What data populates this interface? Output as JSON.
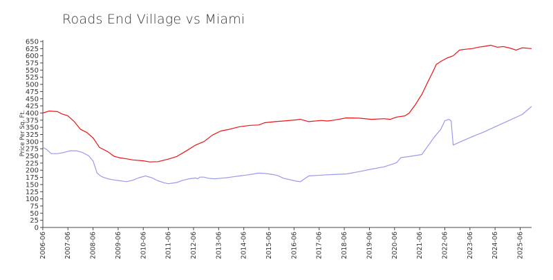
{
  "chart_data": {
    "type": "line",
    "title": "Roads End Village vs Miami",
    "xlabel": "",
    "ylabel": "Price Per Sq. Ft.",
    "ylim": [
      0,
      650
    ],
    "yticks": [
      0,
      25,
      50,
      75,
      100,
      125,
      150,
      175,
      200,
      225,
      250,
      275,
      300,
      325,
      350,
      375,
      400,
      425,
      450,
      475,
      500,
      525,
      550,
      575,
      600,
      625,
      650
    ],
    "xlim": [
      2006.42,
      2025.87
    ],
    "xticks": [
      "2006-06",
      "2007-06",
      "2008-06",
      "2009-06",
      "2010-06",
      "2011-06",
      "2012-06",
      "2013-06",
      "2014-06",
      "2015-06",
      "2016-06",
      "2017-06",
      "2018-06",
      "2019-06",
      "2020-06",
      "2021-06",
      "2022-06",
      "2023-06",
      "2024-06",
      "2025-06"
    ],
    "grid": false,
    "series": [
      {
        "name": "Roads End Village",
        "color": "#ee1111",
        "x": [
          2006.42,
          2006.67,
          2007.0,
          2007.17,
          2007.42,
          2007.67,
          2007.92,
          2008.17,
          2008.42,
          2008.67,
          2009.0,
          2009.25,
          2009.5,
          2009.75,
          2010.0,
          2010.42,
          2010.67,
          2011.0,
          2011.42,
          2011.75,
          2012.17,
          2012.5,
          2012.83,
          2013.17,
          2013.5,
          2013.83,
          2014.25,
          2014.67,
          2015.0,
          2015.25,
          2015.67,
          2016.0,
          2016.5,
          2016.67,
          2017.0,
          2017.5,
          2017.75,
          2018.0,
          2018.5,
          2019.0,
          2019.5,
          2020.0,
          2020.25,
          2020.5,
          2020.83,
          2021.0,
          2021.25,
          2021.5,
          2021.75,
          2021.92,
          2022.08,
          2022.25,
          2022.5,
          2022.75,
          2023.0,
          2023.25,
          2023.5,
          2023.75,
          2024.0,
          2024.25,
          2024.5,
          2024.75,
          2025.0,
          2025.25,
          2025.5,
          2025.87
        ],
        "values": [
          400,
          407,
          405,
          397,
          390,
          370,
          343,
          332,
          313,
          280,
          265,
          249,
          243,
          240,
          236,
          233,
          229,
          230,
          239,
          248,
          270,
          288,
          300,
          323,
          337,
          343,
          352,
          357,
          358,
          366,
          370,
          372,
          376,
          378,
          370,
          374,
          372,
          375,
          383,
          382,
          378,
          380,
          378,
          386,
          390,
          400,
          430,
          465,
          510,
          540,
          570,
          580,
          592,
          600,
          620,
          623,
          625,
          630,
          633,
          637,
          630,
          632,
          627,
          620,
          628,
          625
        ]
      },
      {
        "name": "Miami",
        "color": "#9999ee",
        "x": [
          2006.42,
          2006.58,
          2006.75,
          2007.0,
          2007.25,
          2007.5,
          2007.75,
          2008.0,
          2008.25,
          2008.42,
          2008.58,
          2008.75,
          2009.0,
          2009.25,
          2009.5,
          2009.75,
          2010.0,
          2010.25,
          2010.5,
          2010.75,
          2011.0,
          2011.25,
          2011.42,
          2011.58,
          2011.75,
          2012.0,
          2012.25,
          2012.5,
          2012.58,
          2012.67,
          2012.83,
          2013.0,
          2013.25,
          2013.5,
          2013.75,
          2014.0,
          2014.25,
          2014.5,
          2014.75,
          2015.0,
          2015.25,
          2015.5,
          2015.75,
          2016.0,
          2016.5,
          2016.67,
          2017.0,
          2017.5,
          2018.0,
          2018.5,
          2019.0,
          2019.5,
          2020.0,
          2020.42,
          2020.5,
          2020.67,
          2021.0,
          2021.5,
          2022.0,
          2022.25,
          2022.42,
          2022.58,
          2022.67,
          2022.75,
          2023.0,
          2023.5,
          2024.0,
          2024.5,
          2025.0,
          2025.5,
          2025.87
        ],
        "values": [
          280,
          272,
          258,
          258,
          262,
          268,
          268,
          262,
          250,
          232,
          190,
          178,
          170,
          166,
          163,
          160,
          165,
          174,
          180,
          174,
          163,
          156,
          153,
          155,
          157,
          165,
          170,
          173,
          170,
          176,
          176,
          172,
          170,
          172,
          174,
          177,
          180,
          183,
          186,
          190,
          189,
          186,
          182,
          172,
          162,
          160,
          180,
          183,
          185,
          187,
          195,
          204,
          212,
          224,
          227,
          244,
          248,
          255,
          316,
          342,
          373,
          378,
          372,
          288,
          298,
          317,
          335,
          355,
          375,
          395,
          423
        ]
      }
    ]
  }
}
